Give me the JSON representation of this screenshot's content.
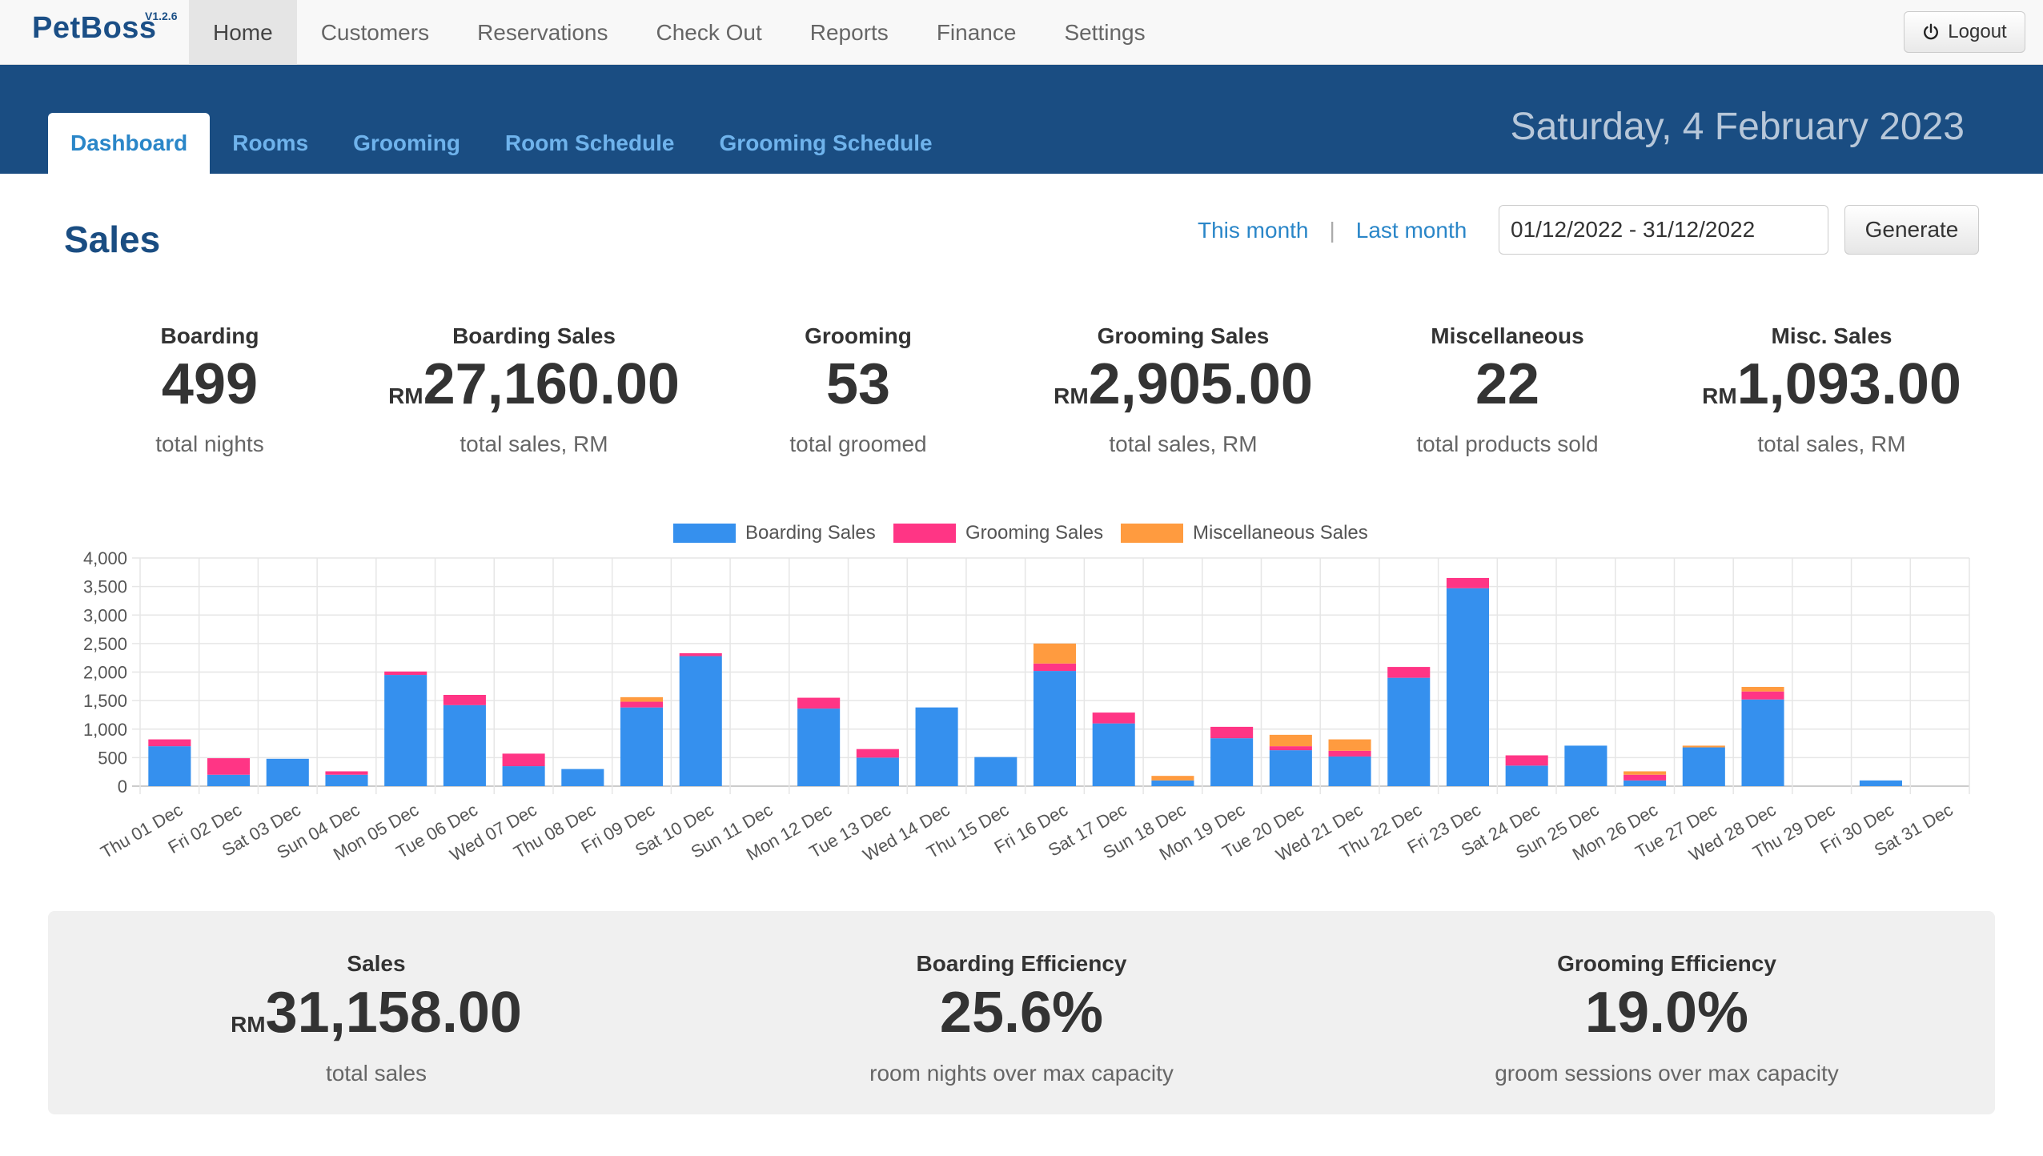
{
  "app": {
    "name": "PetBoss",
    "version": "V1.2.6"
  },
  "topnav": {
    "items": [
      "Home",
      "Customers",
      "Reservations",
      "Check Out",
      "Reports",
      "Finance",
      "Settings"
    ],
    "active": "Home",
    "logout_label": "Logout"
  },
  "subtabs": {
    "items": [
      "Dashboard",
      "Rooms",
      "Grooming",
      "Room Schedule",
      "Grooming Schedule"
    ],
    "active": "Dashboard"
  },
  "date_display": "Saturday, 4 February 2023",
  "sales": {
    "title": "Sales",
    "this_month": "This month",
    "separator": "|",
    "last_month": "Last month",
    "date_range": "01/12/2022 - 31/12/2022",
    "generate_label": "Generate"
  },
  "stats": [
    {
      "title": "Boarding",
      "prefix": "",
      "value": "499",
      "sub": "total nights"
    },
    {
      "title": "Boarding Sales",
      "prefix": "RM",
      "value": "27,160.00",
      "sub": "total sales, RM"
    },
    {
      "title": "Grooming",
      "prefix": "",
      "value": "53",
      "sub": "total groomed"
    },
    {
      "title": "Grooming Sales",
      "prefix": "RM",
      "value": "2,905.00",
      "sub": "total sales, RM"
    },
    {
      "title": "Miscellaneous",
      "prefix": "",
      "value": "22",
      "sub": "total products sold"
    },
    {
      "title": "Misc. Sales",
      "prefix": "RM",
      "value": "1,093.00",
      "sub": "total sales, RM"
    }
  ],
  "chart_data": {
    "type": "bar",
    "stacked": true,
    "title": "",
    "xlabel": "",
    "ylabel": "",
    "ylim": [
      0,
      4000
    ],
    "yticks": [
      0,
      500,
      1000,
      1500,
      2000,
      2500,
      3000,
      3500,
      4000
    ],
    "ytick_labels": [
      "0",
      "500",
      "1,000",
      "1,500",
      "2,000",
      "2,500",
      "3,000",
      "3,500",
      "4,000"
    ],
    "grid": true,
    "legend": "top-center",
    "categories": [
      "Thu 01 Dec",
      "Fri 02 Dec",
      "Sat 03 Dec",
      "Sun 04 Dec",
      "Mon 05 Dec",
      "Tue 06 Dec",
      "Wed 07 Dec",
      "Thu 08 Dec",
      "Fri 09 Dec",
      "Sat 10 Dec",
      "Sun 11 Dec",
      "Mon 12 Dec",
      "Tue 13 Dec",
      "Wed 14 Dec",
      "Thu 15 Dec",
      "Fri 16 Dec",
      "Sat 17 Dec",
      "Sun 18 Dec",
      "Mon 19 Dec",
      "Tue 20 Dec",
      "Wed 21 Dec",
      "Thu 22 Dec",
      "Fri 23 Dec",
      "Sat 24 Dec",
      "Sun 25 Dec",
      "Mon 26 Dec",
      "Tue 27 Dec",
      "Wed 28 Dec",
      "Thu 29 Dec",
      "Fri 30 Dec",
      "Sat 31 Dec"
    ],
    "series": [
      {
        "name": "Boarding Sales",
        "color": "#3590ee",
        "values": [
          700,
          200,
          480,
          200,
          1950,
          1420,
          350,
          300,
          1380,
          2280,
          0,
          1360,
          500,
          1380,
          510,
          2020,
          1100,
          100,
          840,
          630,
          520,
          1900,
          3470,
          360,
          710,
          100,
          680,
          1520,
          0,
          100,
          0
        ]
      },
      {
        "name": "Grooming Sales",
        "color": "#ff3585",
        "values": [
          120,
          290,
          0,
          60,
          60,
          180,
          220,
          0,
          100,
          50,
          0,
          190,
          150,
          0,
          0,
          130,
          190,
          0,
          200,
          70,
          100,
          190,
          180,
          180,
          0,
          100,
          0,
          140,
          0,
          0,
          0
        ]
      },
      {
        "name": "Miscellaneous Sales",
        "color": "#ff9b3f",
        "values": [
          0,
          0,
          0,
          0,
          0,
          0,
          0,
          0,
          80,
          0,
          0,
          0,
          0,
          0,
          0,
          350,
          0,
          80,
          0,
          200,
          200,
          0,
          0,
          0,
          0,
          60,
          30,
          80,
          0,
          0,
          0
        ]
      }
    ]
  },
  "summary": [
    {
      "title": "Sales",
      "prefix": "RM",
      "value": "31,158.00",
      "sub": "total sales"
    },
    {
      "title": "Boarding Efficiency",
      "prefix": "",
      "value": "25.6%",
      "sub": "room nights over max capacity"
    },
    {
      "title": "Grooming Efficiency",
      "prefix": "",
      "value": "19.0%",
      "sub": "groom sessions over max capacity"
    }
  ]
}
